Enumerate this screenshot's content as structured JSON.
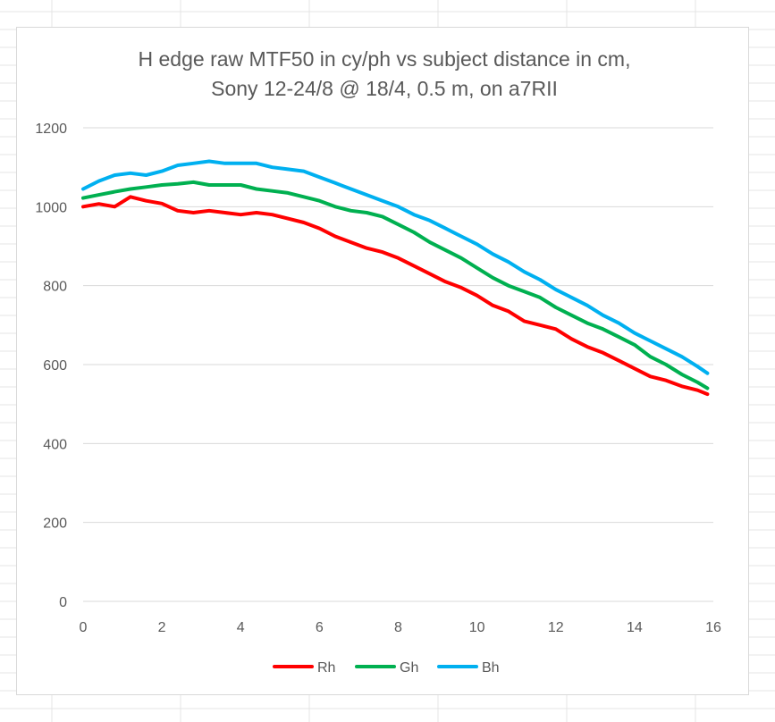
{
  "chart_data": {
    "type": "line",
    "title_lines": [
      "H edge raw MTF50 in cy/ph vs subject distance in cm,",
      "Sony 12-24/8 @ 18/4, 0.5 m, on a7RII"
    ],
    "xlabel": "",
    "ylabel": "",
    "xlim": [
      0,
      16
    ],
    "ylim": [
      0,
      1200
    ],
    "x_ticks": [
      0,
      2,
      4,
      6,
      8,
      10,
      12,
      14,
      16
    ],
    "y_ticks": [
      0,
      200,
      400,
      600,
      800,
      1000,
      1200
    ],
    "grid": "horizontal",
    "legend_position": "bottom",
    "x": [
      0,
      0.4,
      0.8,
      1.2,
      1.6,
      2,
      2.4,
      2.8,
      3.2,
      3.6,
      4,
      4.4,
      4.8,
      5.2,
      5.6,
      6,
      6.4,
      6.8,
      7.2,
      7.6,
      8,
      8.4,
      8.8,
      9.2,
      9.6,
      10,
      10.4,
      10.8,
      11.2,
      11.6,
      12,
      12.4,
      12.8,
      13.2,
      13.6,
      14,
      14.4,
      14.8,
      15.2,
      15.6,
      15.85
    ],
    "series": [
      {
        "name": "Rh",
        "color": "#ff0000",
        "values": [
          1000,
          1007,
          1000,
          1025,
          1015,
          1008,
          990,
          985,
          990,
          985,
          980,
          985,
          980,
          970,
          960,
          945,
          925,
          910,
          895,
          885,
          870,
          850,
          830,
          810,
          795,
          775,
          750,
          735,
          710,
          700,
          690,
          665,
          645,
          630,
          610,
          590,
          570,
          560,
          545,
          535,
          525
        ]
      },
      {
        "name": "Gh",
        "color": "#00b050",
        "values": [
          1022,
          1030,
          1038,
          1045,
          1050,
          1055,
          1058,
          1062,
          1055,
          1055,
          1055,
          1045,
          1040,
          1035,
          1025,
          1015,
          1000,
          990,
          985,
          975,
          955,
          935,
          910,
          890,
          870,
          845,
          820,
          800,
          785,
          770,
          745,
          725,
          705,
          690,
          670,
          650,
          620,
          600,
          575,
          555,
          540
        ]
      },
      {
        "name": "Bh",
        "color": "#00b0f0",
        "values": [
          1045,
          1065,
          1080,
          1085,
          1080,
          1090,
          1105,
          1110,
          1115,
          1110,
          1110,
          1110,
          1100,
          1095,
          1090,
          1075,
          1060,
          1045,
          1030,
          1015,
          1000,
          980,
          965,
          945,
          925,
          905,
          880,
          860,
          835,
          815,
          790,
          770,
          750,
          725,
          705,
          680,
          660,
          640,
          620,
          595,
          578
        ]
      }
    ]
  }
}
